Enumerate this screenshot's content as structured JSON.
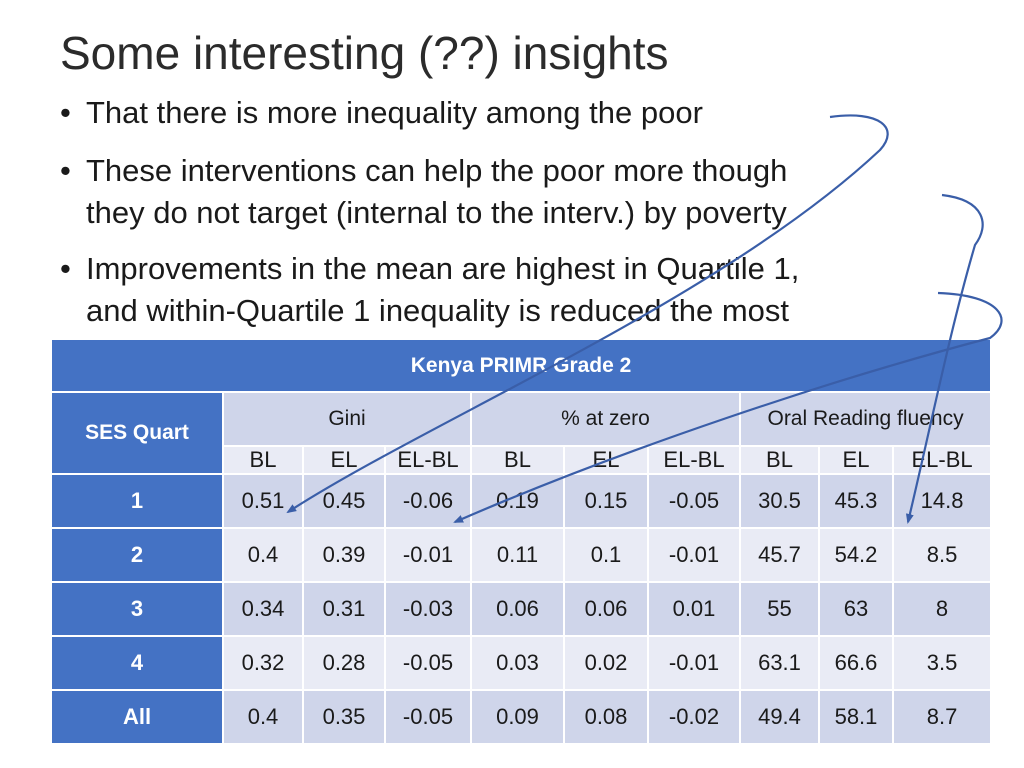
{
  "slide": {
    "title": "Some interesting (??) insights",
    "bullets": [
      {
        "lines": [
          "That there is more inequality among the poor"
        ]
      },
      {
        "lines": [
          "These interventions can help the poor more though",
          "they do not target (internal to the interv.) by poverty"
        ]
      },
      {
        "lines": [
          "Improvements in the mean are highest in Quartile 1,",
          "and within-Quartile 1 inequality is reduced the most"
        ]
      }
    ]
  },
  "table": {
    "title": "Kenya PRIMR Grade 2",
    "row_header": "SES Quart",
    "groups": [
      "Gini",
      "% at zero",
      "Oral Reading fluency"
    ],
    "subheaders": [
      "BL",
      "EL",
      "EL-BL",
      "BL",
      "EL",
      "EL-BL",
      "BL",
      "EL",
      "EL-BL"
    ],
    "rows": [
      {
        "label": "1",
        "values": [
          "0.51",
          "0.45",
          "-0.06",
          "0.19",
          "0.15",
          "-0.05",
          "30.5",
          "45.3",
          "14.8"
        ]
      },
      {
        "label": "2",
        "values": [
          "0.4",
          "0.39",
          "-0.01",
          "0.11",
          "0.1",
          "-0.01",
          "45.7",
          "54.2",
          "8.5"
        ]
      },
      {
        "label": "3",
        "values": [
          "0.34",
          "0.31",
          "-0.03",
          "0.06",
          "0.06",
          "0.01",
          "55",
          "63",
          "8"
        ]
      },
      {
        "label": "4",
        "values": [
          "0.32",
          "0.28",
          "-0.05",
          "0.03",
          "0.02",
          "-0.01",
          "63.1",
          "66.6",
          "3.5"
        ]
      },
      {
        "label": "All",
        "values": [
          "0.4",
          "0.35",
          "-0.05",
          "0.09",
          "0.08",
          "-0.02",
          "49.4",
          "58.1",
          "8.7"
        ]
      }
    ]
  },
  "colors": {
    "header_blue": "#4472c4",
    "band_dark": "#cfd5ea",
    "band_light": "#e9ebf5",
    "arrow": "#3a5ea8"
  }
}
